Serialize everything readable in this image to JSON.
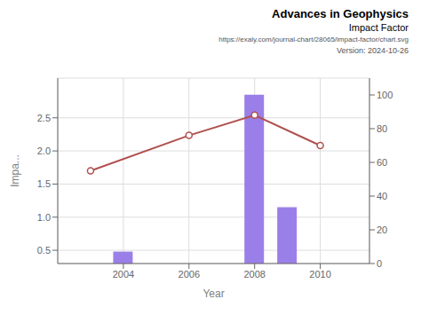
{
  "chart_data": {
    "type": "bar",
    "title": "Advances in Geophysics",
    "subtitle": "Impact Factor",
    "annotations": [
      "https://exaly.com/journal-chart/28065/impact-factor/chart.svg",
      "Version: 2024-10-26"
    ],
    "xlabel": "Year",
    "ylabel": "Impa...",
    "series": [
      {
        "type": "bar",
        "color": "#9b7fe8",
        "x": [
          2004,
          2008,
          2009
        ],
        "values": [
          0.48,
          2.85,
          1.15
        ]
      },
      {
        "type": "line",
        "color": "#b05050",
        "marker": "circle",
        "axis": "y2",
        "x": [
          2003,
          2006,
          2008,
          2010
        ],
        "values": [
          55,
          76,
          88,
          70
        ]
      }
    ],
    "xlim": [
      2002.0,
      2011.5
    ],
    "xticks": [
      2004,
      2006,
      2008,
      2010
    ],
    "ylim": [
      0.3,
      3.1
    ],
    "yticks": [
      0.5,
      {
        "value": 1.0,
        "label": "1.0"
      },
      1.5,
      {
        "value": 2.0,
        "label": "2.0"
      },
      2.5
    ],
    "y2lim": [
      0,
      110
    ],
    "y2ticks": [
      0,
      20,
      40,
      60,
      80,
      100
    ],
    "grid": true
  }
}
